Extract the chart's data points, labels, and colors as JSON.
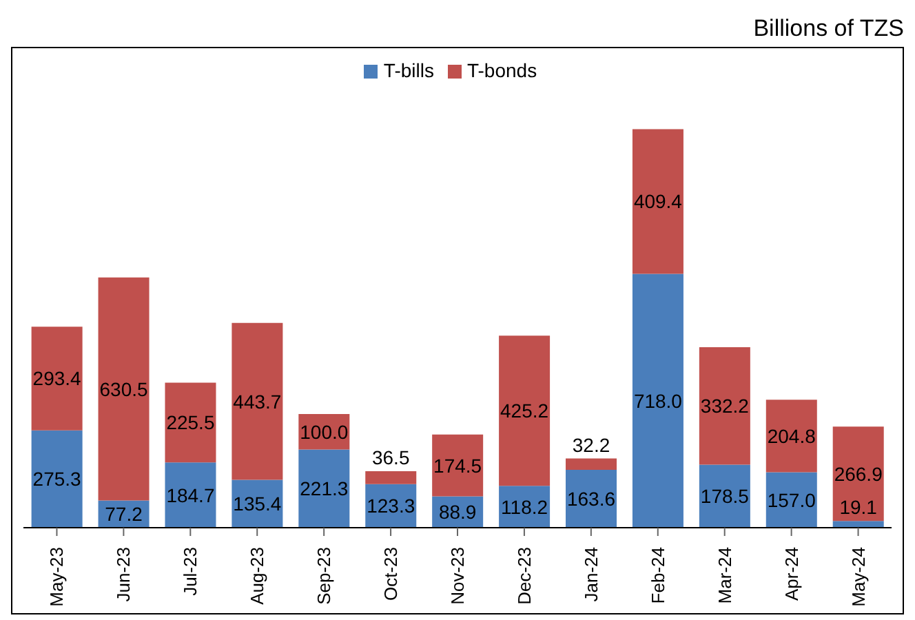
{
  "chart_data": {
    "type": "bar",
    "stacked": true,
    "annotations": [
      "Billions of TZS"
    ],
    "categories": [
      "May-23",
      "Jun-23",
      "Jul-23",
      "Aug-23",
      "Sep-23",
      "Oct-23",
      "Nov-23",
      "Dec-23",
      "Jan-24",
      "Feb-24",
      "Mar-24",
      "Apr-24",
      "May-24"
    ],
    "series": [
      {
        "name": "T-bills",
        "color": "#4a7ebb",
        "values": [
          275.3,
          77.2,
          184.7,
          135.4,
          221.3,
          123.3,
          88.9,
          118.2,
          163.6,
          718.0,
          178.5,
          157.0,
          19.1
        ],
        "value_labels": [
          "275.3",
          "77.2",
          "184.7",
          "135.4",
          "221.3",
          "123.3",
          "88.9",
          "118.2",
          "163.6",
          "718.0",
          "178.5",
          "157.0",
          "19.1"
        ]
      },
      {
        "name": "T-bonds",
        "color": "#c0504d",
        "values": [
          293.4,
          630.5,
          225.5,
          443.7,
          100.0,
          36.5,
          174.5,
          425.2,
          32.2,
          409.4,
          332.2,
          204.8,
          266.9
        ],
        "value_labels": [
          "293.4",
          "630.5",
          "225.5",
          "443.7",
          "100.0",
          "36.5",
          "174.5",
          "425.2",
          "32.2",
          "409.4",
          "332.2",
          "204.8",
          "266.9"
        ]
      }
    ],
    "legend": "top"
  }
}
